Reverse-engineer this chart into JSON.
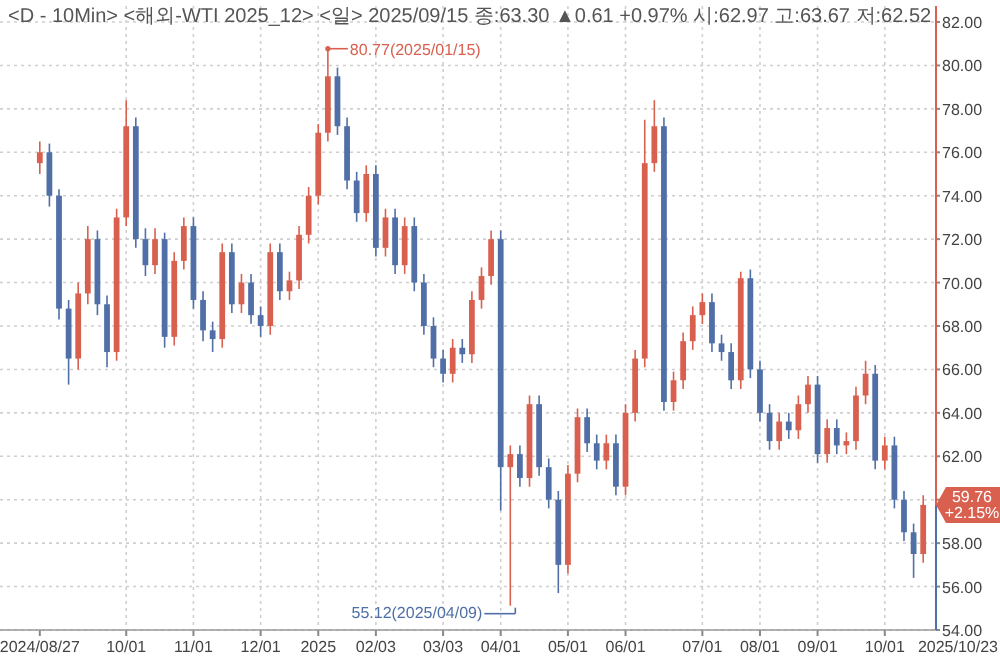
{
  "chart_data": {
    "type": "candlestick",
    "title": "<D - 10Min> <해외-WTI 2025_12> <일> 2025/09/15 종:63.30 ▲0.61 +0.97% 시:62.97 고:63.67 저:62.52",
    "categories": [
      "2024/08/27",
      null,
      null,
      null,
      null,
      null,
      null,
      null,
      null,
      "10/01",
      null,
      null,
      null,
      null,
      null,
      null,
      "11/01",
      null,
      null,
      null,
      null,
      null,
      null,
      "12/01",
      null,
      null,
      null,
      null,
      null,
      "2025",
      null,
      null,
      null,
      null,
      null,
      "02/03",
      null,
      null,
      null,
      null,
      null,
      null,
      "03/03",
      null,
      null,
      null,
      null,
      null,
      "04/01",
      null,
      null,
      null,
      null,
      null,
      null,
      "05/01",
      null,
      null,
      null,
      null,
      null,
      "06/01",
      null,
      null,
      null,
      null,
      null,
      null,
      null,
      "07/01",
      null,
      null,
      null,
      null,
      null,
      "08/01",
      null,
      null,
      null,
      null,
      null,
      "09/01",
      null,
      null,
      null,
      null,
      null,
      null,
      "10/01",
      null,
      null,
      null,
      null
    ],
    "ohlc": [
      [
        75.5,
        76.5,
        75,
        76
      ],
      [
        76,
        76.4,
        73.5,
        74
      ],
      [
        74,
        74.3,
        68.3,
        68.8
      ],
      [
        68.8,
        69.2,
        65.3,
        66.5
      ],
      [
        66.5,
        70,
        66,
        69.5
      ],
      [
        69.5,
        72.6,
        69,
        72
      ],
      [
        72,
        72.4,
        68.5,
        69
      ],
      [
        69,
        69.4,
        66.1,
        66.8
      ],
      [
        66.8,
        73.4,
        66.4,
        73
      ],
      [
        73,
        78.4,
        72.6,
        77.2
      ],
      [
        77.2,
        77.6,
        71.6,
        72
      ],
      [
        72,
        72.5,
        70.3,
        70.8
      ],
      [
        70.8,
        72.5,
        70.4,
        72
      ],
      [
        72,
        72.3,
        67,
        67.5
      ],
      [
        67.5,
        71.4,
        67.1,
        71
      ],
      [
        71,
        73,
        70.6,
        72.6
      ],
      [
        72.6,
        73,
        68.8,
        69.2
      ],
      [
        69.2,
        69.6,
        67.3,
        67.8
      ],
      [
        67.8,
        68.2,
        66.8,
        67.4
      ],
      [
        67.4,
        71.8,
        67,
        71.4
      ],
      [
        71.4,
        71.8,
        68.6,
        69
      ],
      [
        69,
        70.4,
        68.6,
        70
      ],
      [
        70,
        70.4,
        68.1,
        68.5
      ],
      [
        68.5,
        68.9,
        67.5,
        68
      ],
      [
        68,
        71.8,
        67.6,
        71.4
      ],
      [
        71.4,
        71.8,
        69.2,
        69.6
      ],
      [
        69.6,
        70.5,
        69.2,
        70.1
      ],
      [
        70.1,
        72.6,
        69.7,
        72.2
      ],
      [
        72.2,
        74.4,
        71.8,
        74
      ],
      [
        74,
        77.3,
        73.6,
        76.9
      ],
      [
        76.9,
        80.77,
        76.5,
        79.5
      ],
      [
        79.5,
        79.9,
        76.8,
        77.2
      ],
      [
        77.2,
        77.6,
        74.3,
        74.7
      ],
      [
        74.7,
        75.1,
        72.8,
        73.2
      ],
      [
        73.2,
        75.4,
        72.8,
        75
      ],
      [
        75,
        75.4,
        71.2,
        71.6
      ],
      [
        71.6,
        73.4,
        71.2,
        73
      ],
      [
        73,
        73.4,
        70.4,
        70.8
      ],
      [
        70.8,
        73,
        70.4,
        72.6
      ],
      [
        72.6,
        73,
        69.6,
        70
      ],
      [
        70,
        70.4,
        67.6,
        68
      ],
      [
        68,
        68.4,
        66.1,
        66.5
      ],
      [
        66.5,
        66.9,
        65.4,
        65.8
      ],
      [
        65.8,
        67.4,
        65.4,
        67
      ],
      [
        67,
        67.4,
        66.3,
        66.7
      ],
      [
        66.7,
        69.6,
        66.3,
        69.2
      ],
      [
        69.2,
        70.7,
        68.8,
        70.3
      ],
      [
        70.3,
        72.4,
        69.9,
        72
      ],
      [
        72,
        72.4,
        59.5,
        61.5
      ],
      [
        61.5,
        62.5,
        55.12,
        62.1
      ],
      [
        62.1,
        62.5,
        60.6,
        61
      ],
      [
        61,
        64.8,
        60.6,
        64.4
      ],
      [
        64.4,
        64.8,
        61.1,
        61.5
      ],
      [
        61.5,
        61.9,
        59.6,
        60
      ],
      [
        60,
        60.4,
        55.7,
        57
      ],
      [
        57,
        61.6,
        56.6,
        61.2
      ],
      [
        61.2,
        64.2,
        60.8,
        63.8
      ],
      [
        63.8,
        64.2,
        62.2,
        62.6
      ],
      [
        62.6,
        63,
        61.4,
        61.8
      ],
      [
        61.8,
        63,
        61.4,
        62.6
      ],
      [
        62.6,
        63,
        60.2,
        60.6
      ],
      [
        60.6,
        64.4,
        60.2,
        64
      ],
      [
        64,
        66.9,
        63.6,
        66.5
      ],
      [
        66.5,
        77.5,
        66.1,
        75.5
      ],
      [
        75.5,
        78.4,
        75.1,
        77.2
      ],
      [
        77.2,
        77.6,
        64.1,
        64.5
      ],
      [
        64.5,
        65.9,
        64.1,
        65.5
      ],
      [
        65.5,
        67.7,
        65.1,
        67.3
      ],
      [
        67.3,
        68.9,
        66.9,
        68.5
      ],
      [
        68.5,
        69.5,
        68.1,
        69.1
      ],
      [
        69.1,
        69.5,
        66.8,
        67.2
      ],
      [
        67.2,
        67.6,
        66.4,
        66.8
      ],
      [
        66.8,
        67.2,
        65.1,
        65.5
      ],
      [
        65.5,
        70.5,
        65.1,
        70.2
      ],
      [
        70.2,
        70.6,
        65.6,
        66
      ],
      [
        66,
        66.4,
        63.6,
        64
      ],
      [
        64,
        64.4,
        62.3,
        62.7
      ],
      [
        62.7,
        64,
        62.3,
        63.6
      ],
      [
        63.6,
        64,
        62.8,
        63.2
      ],
      [
        63.2,
        64.8,
        62.8,
        64.4
      ],
      [
        64.4,
        65.7,
        64,
        65.3
      ],
      [
        65.3,
        65.7,
        61.7,
        62.1
      ],
      [
        62.1,
        63.7,
        61.7,
        63.3
      ],
      [
        63.3,
        63.7,
        62.1,
        62.5
      ],
      [
        62.5,
        63.1,
        62.1,
        62.7
      ],
      [
        62.7,
        65.2,
        62.3,
        64.8
      ],
      [
        64.8,
        66.4,
        64.4,
        65.8
      ],
      [
        65.8,
        66.2,
        61.4,
        61.8
      ],
      [
        61.8,
        62.9,
        61.4,
        62.5
      ],
      [
        62.5,
        62.9,
        59.6,
        60
      ],
      [
        60,
        60.4,
        58.1,
        58.5
      ],
      [
        58.5,
        58.9,
        56.4,
        57.5
      ],
      [
        57.5,
        60.2,
        57.1,
        59.76
      ]
    ],
    "colors": [
      "#d9604f",
      "#4f6fa6",
      "#4f6fa6",
      "#4f6fa6",
      "#d9604f",
      "#d9604f",
      "#4f6fa6",
      "#4f6fa6",
      "#d9604f",
      "#d9604f",
      "#4f6fa6",
      "#4f6fa6",
      "#d9604f",
      "#4f6fa6",
      "#d9604f",
      "#d9604f",
      "#4f6fa6",
      "#4f6fa6",
      "#4f6fa6",
      "#d9604f",
      "#4f6fa6",
      "#d9604f",
      "#4f6fa6",
      "#4f6fa6",
      "#d9604f",
      "#4f6fa6",
      "#d9604f",
      "#d9604f",
      "#d9604f",
      "#d9604f",
      "#d9604f",
      "#4f6fa6",
      "#4f6fa6",
      "#4f6fa6",
      "#d9604f",
      "#4f6fa6",
      "#d9604f",
      "#4f6fa6",
      "#d9604f",
      "#4f6fa6",
      "#4f6fa6",
      "#4f6fa6",
      "#4f6fa6",
      "#d9604f",
      "#4f6fa6",
      "#d9604f",
      "#d9604f",
      "#d9604f",
      "#4f6fa6",
      "#d9604f",
      "#4f6fa6",
      "#d9604f",
      "#4f6fa6",
      "#4f6fa6",
      "#4f6fa6",
      "#d9604f",
      "#d9604f",
      "#4f6fa6",
      "#4f6fa6",
      "#d9604f",
      "#4f6fa6",
      "#d9604f",
      "#d9604f",
      "#d9604f",
      "#d9604f",
      "#4f6fa6",
      "#d9604f",
      "#d9604f",
      "#d9604f",
      "#d9604f",
      "#4f6fa6",
      "#4f6fa6",
      "#4f6fa6",
      "#d9604f",
      "#4f6fa6",
      "#4f6fa6",
      "#4f6fa6",
      "#d9604f",
      "#4f6fa6",
      "#d9604f",
      "#d9604f",
      "#4f6fa6",
      "#d9604f",
      "#4f6fa6",
      "#d9604f",
      "#d9604f",
      "#d9604f",
      "#4f6fa6",
      "#d9604f",
      "#4f6fa6",
      "#4f6fa6",
      "#4f6fa6",
      "#d9604f"
    ],
    "ylim": [
      54,
      82
    ],
    "yticks": [
      {
        "value": 54,
        "label": "54.00"
      },
      {
        "value": 56,
        "label": "56.00"
      },
      {
        "value": 58,
        "label": "58.00"
      },
      {
        "value": 60,
        "label": null
      },
      {
        "value": 62,
        "label": "62.00"
      },
      {
        "value": 64,
        "label": "64.00"
      },
      {
        "value": 66,
        "label": "66.00"
      },
      {
        "value": 68,
        "label": "68.00"
      },
      {
        "value": 70,
        "label": "70.00"
      },
      {
        "value": 72,
        "label": "72.00"
      },
      {
        "value": 74,
        "label": "74.00"
      },
      {
        "value": 76,
        "label": "76.00"
      },
      {
        "value": 78,
        "label": "78.00"
      },
      {
        "value": 80,
        "label": "80.00"
      },
      {
        "value": 82,
        "label": "82.00"
      }
    ],
    "grid": true,
    "annotations": [
      "80.77(2025/01/15)",
      "55.12(2025/04/09)",
      "59.76 +2.15%",
      "2025/10/23"
    ]
  }
}
